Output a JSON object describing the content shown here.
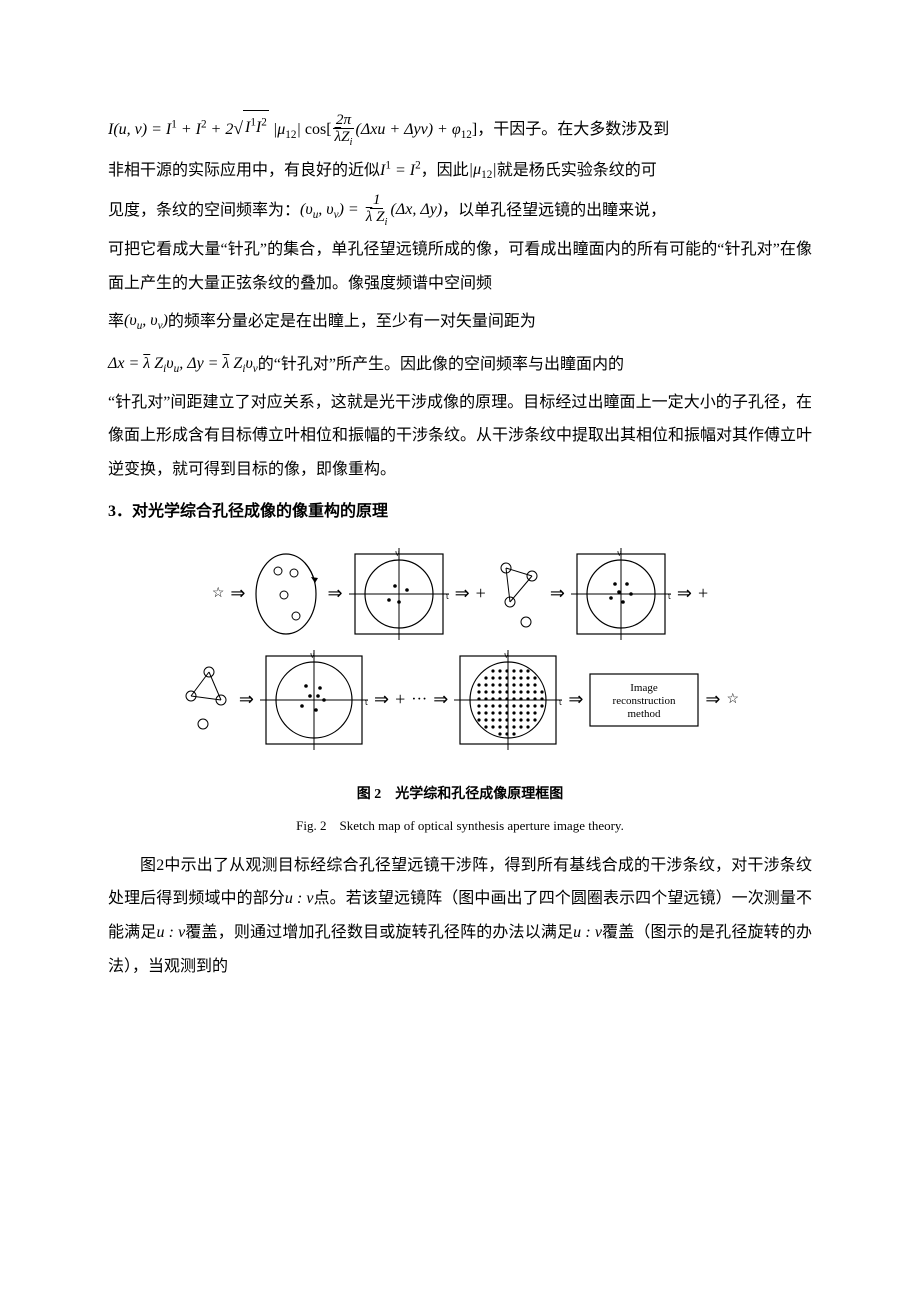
{
  "p1_prefix_math_html": "<span class='math'>I(u, v) = I<sup>1</sup> + I<sup>2</sup> + 2<span class='sqrt'><span class='sqrt-sym'>√</span><span class='sqrt-body'>I<sup>1</sup>I<sup>2</sup></span></span> |μ<sub>12</sub>| <span class='rm'>cos[</span><span class='frac'><span class='num'>2π</span><span class='den'><span class='overbar'>λ</span>Z<sub class='sub-i'>i</sub></span></span>(Δxu + Δyv) + φ<sub>12</sub><span class='rm'>]</span></span>",
  "p1_suffix": "，干因子。在大多数涉及到",
  "p2_a": "非相干源的实际应用中，有良好的近似",
  "p2_math1": "<span class='math'>I<sup>1</sup> = I<sup>2</sup></span>",
  "p2_b": "，因此",
  "p2_math2": "<span class='math'>|μ<sub>12</sub>|</span>",
  "p2_c": "就是杨氏实验条纹的可",
  "p3_a": "见度，条纹的空间频率为：",
  "p3_math": "<span class='math'>(υ<sub class='sub-i'>u</sub>, υ<sub class='sub-i'>v</sub>) = <span class='frac'><span class='num'>1</span><span class='den'><span class='overbar'>λ</span> Z<sub class='sub-i'>i</sub></span></span>(Δx, Δy)</span>",
  "p3_b": "，以单孔径望远镜的出瞳来说，",
  "p4": "可把它看成大量“针孔”的集合，单孔径望远镜所成的像，可看成出瞳面内的所有可能的“针孔对”在像面上产生的大量正弦条纹的叠加。像强度频谱中空间频",
  "p5_a": "率",
  "p5_math": "<span class='math'>(υ<sub class='sub-i'>u</sub>, υ<sub class='sub-i'>v</sub>)</span>",
  "p5_b": "的频率分量必定是在出瞳上，至少有一对矢量间距为",
  "p6_math": "<span class='math'>Δx = <span class='overbar'>λ</span> Z<sub class='sub-i'>i</sub>υ<sub class='sub-i'>u</sub>, Δy = <span class='overbar'>λ</span> Z<sub class='sub-i'>i</sub>υ<sub class='sub-i'>v</sub></span>",
  "p6_b": "的“针孔对”所产生。因此像的空间频率与出瞳面内的",
  "p7": "“针孔对”间距建立了对应关系，这就是光干涉成像的原理。目标经过出瞳面上一定大小的子孔径，在像面上形成含有目标傅立叶相位和振幅的干涉条纹。从干涉条纹中提取出其相位和振幅对其作傅立叶逆变换，就可得到目标的像，即像重构。",
  "heading3": "3．对光学综合孔径成像的像重构的原理",
  "diagram": {
    "stroke": "#000000",
    "box_label": "Image\nreconstruction\nmethod",
    "u_label": "u",
    "v_label": "v"
  },
  "caption_zh": "图 2　光学综和孔径成像原理框图",
  "caption_en": "Fig. 2　Sketch map of optical synthesis aperture image theory.",
  "p8_a": "图2中示出了从观测目标经综合孔径望远镜干涉阵，得到所有基线合成的干涉条纹，对干涉条纹处理后得到频域中的部分",
  "p8_math1": "<span class='math'>u : v</span>",
  "p8_b": "点。若该望远镜阵（图中画出了四个圆圈表示四个望远镜）一次测量不能满足",
  "p8_math2": "<span class='math'>u : v</span>",
  "p8_c": "覆盖，则通过增加孔径数目或旋转孔径阵的办法以满足",
  "p8_math3": "<span class='math'>u : v</span>",
  "p8_d": "覆盖（图示的是孔径旋转的办法），当观测到的"
}
